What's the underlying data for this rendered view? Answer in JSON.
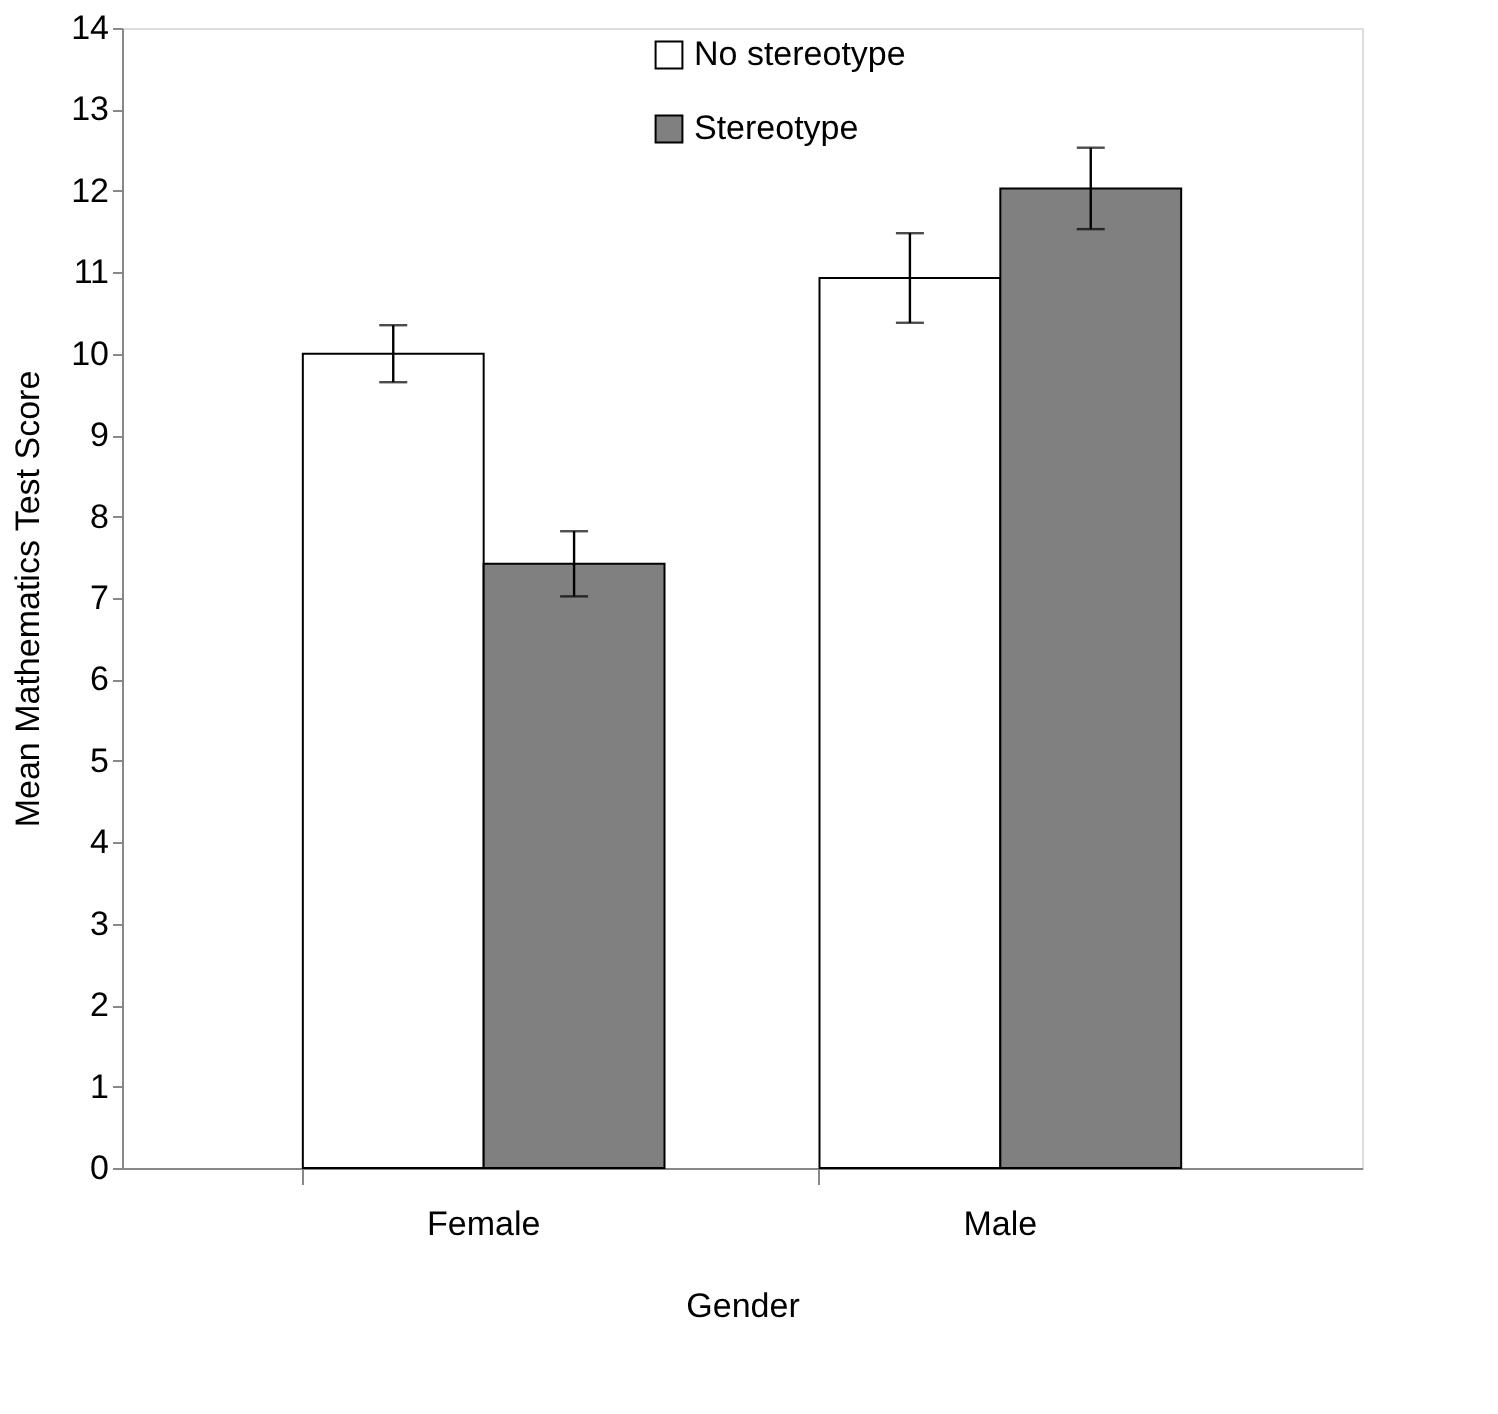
{
  "chart_data": {
    "type": "bar",
    "xlabel": "Gender",
    "ylabel": "Mean Mathematics Test Score",
    "categories": [
      "Female",
      "Male"
    ],
    "series": [
      {
        "name": "No stereotype",
        "color": "#ffffff",
        "values": [
          10.0,
          10.93
        ],
        "errors": [
          0.35,
          0.55
        ]
      },
      {
        "name": "Stereotype",
        "color": "#808080",
        "values": [
          7.42,
          12.03
        ],
        "errors": [
          0.4,
          0.5
        ]
      }
    ],
    "ylim": [
      0,
      14
    ],
    "yticks": [
      0,
      1,
      2,
      3,
      4,
      5,
      6,
      7,
      8,
      9,
      10,
      11,
      12,
      13,
      14
    ],
    "grid": false,
    "legend": "top"
  }
}
